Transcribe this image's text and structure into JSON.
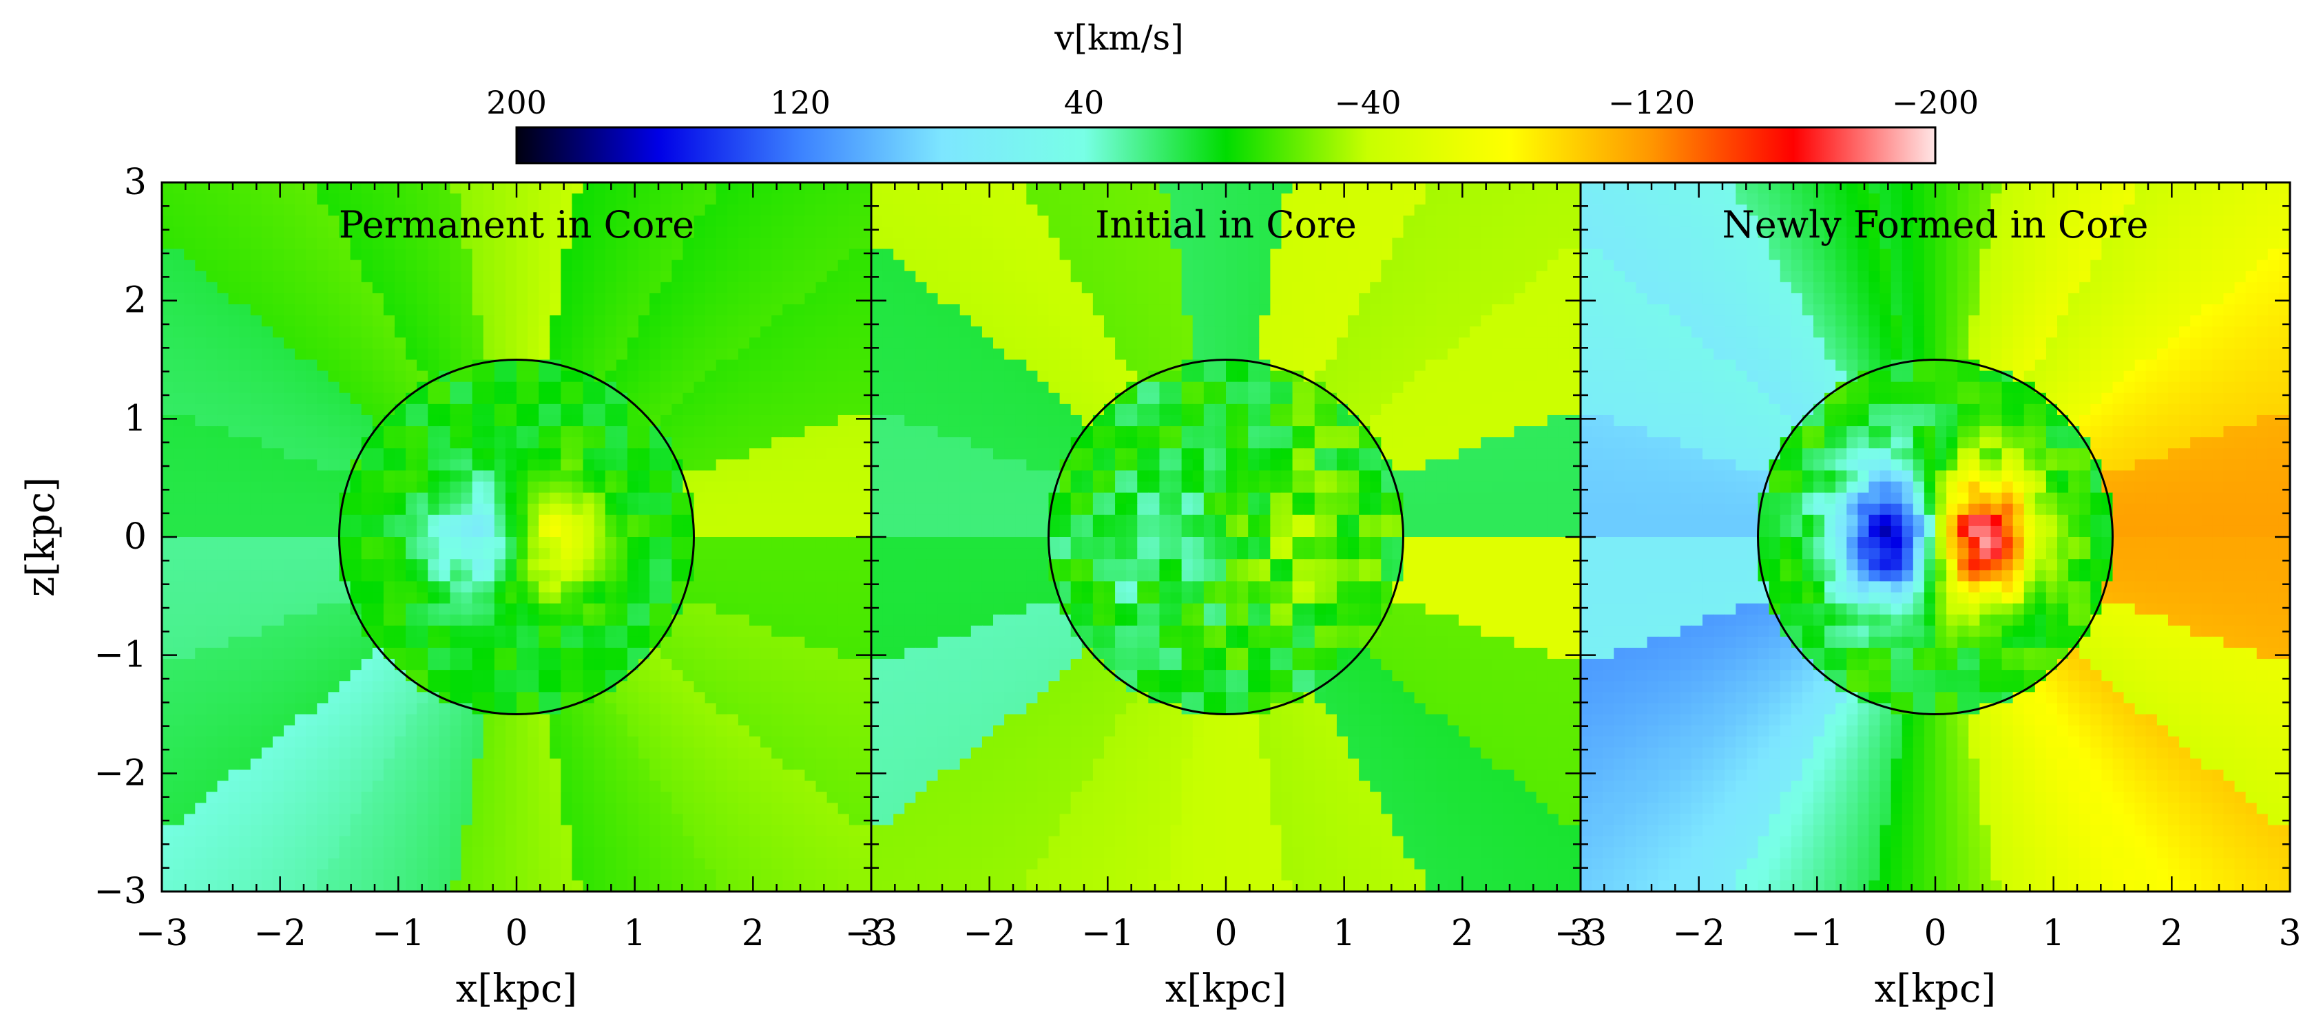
{
  "colorbar": {
    "label": "v[km/s]",
    "tick_labels": [
      "200",
      "120",
      "40",
      "−40",
      "−120",
      "−200"
    ],
    "tick_values": [
      200,
      120,
      40,
      -40,
      -120,
      -200
    ],
    "range": [
      200,
      -200
    ],
    "colormap": [
      "#000010",
      "#0000e6",
      "#3c82ff",
      "#7de6ff",
      "#78ffe6",
      "#00dc00",
      "#c8ff00",
      "#ffff00",
      "#ff9600",
      "#ff0000",
      "#ffe6e6"
    ]
  },
  "chart_data": [
    {
      "type": "heatmap",
      "title": "Permanent in Core",
      "xlabel": "x[kpc]",
      "ylabel": "z[kpc]",
      "xlim": [
        -3,
        3
      ],
      "ylim": [
        -3,
        3
      ],
      "core_circle_radius_kpc": 1.5,
      "vmax_kms": 60,
      "inner_spread_kpc": 0.35,
      "noise_kms": 15
    },
    {
      "type": "heatmap",
      "title": "Initial in Core",
      "xlabel": "x[kpc]",
      "ylabel": "z[kpc]",
      "xlim": [
        -3,
        3
      ],
      "ylim": [
        -3,
        3
      ],
      "core_circle_radius_kpc": 1.5,
      "vmax_kms": 20,
      "inner_spread_kpc": 0.6,
      "noise_kms": 25
    },
    {
      "type": "heatmap",
      "title": "Newly Formed in Core",
      "xlabel": "x[kpc]",
      "ylabel": "z[kpc]",
      "xlim": [
        -3,
        3
      ],
      "ylim": [
        -3,
        3
      ],
      "core_circle_radius_kpc": 1.5,
      "vmax_kms": 170,
      "inner_spread_kpc": 0.4,
      "noise_kms": 20
    }
  ],
  "x_tick_labels": [
    "−3",
    "−2",
    "−1",
    "0",
    "1",
    "2",
    "3"
  ],
  "y_tick_labels": [
    "3",
    "2",
    "1",
    "0",
    "−1",
    "−2",
    "−3"
  ]
}
